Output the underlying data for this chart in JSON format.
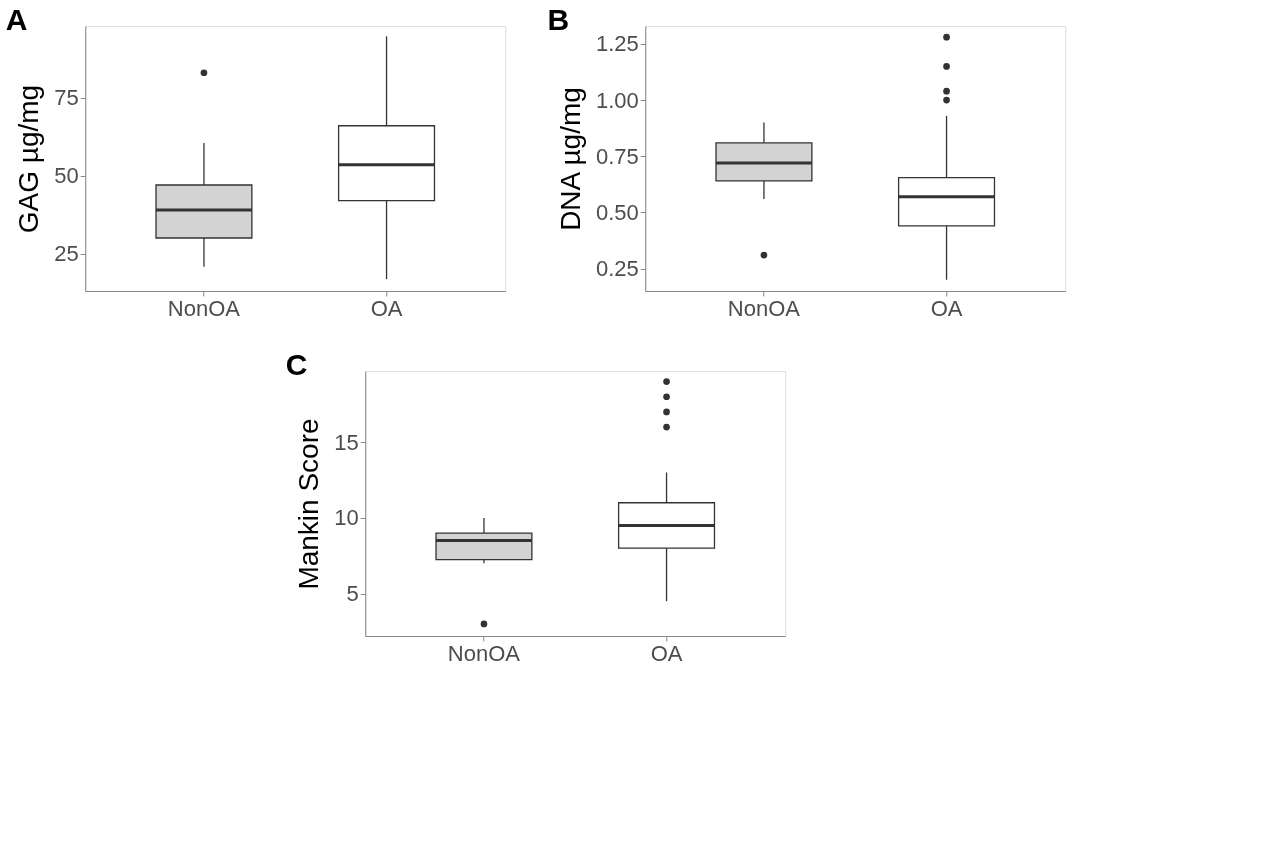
{
  "chart_data": [
    {
      "type": "box",
      "title": "A",
      "ylabel": "GAG µg/mg",
      "categories": [
        "NonOA",
        "OA"
      ],
      "colors": [
        "#d3d3d3",
        "#ffffff"
      ],
      "ylim": [
        13,
        98
      ],
      "yticks": [
        25,
        50,
        75
      ],
      "grid": false,
      "boxes": [
        {
          "low": 20.8,
          "q1": 30,
          "median": 39,
          "q3": 47,
          "high": 60.5,
          "outliers": [
            83
          ]
        },
        {
          "low": 16.8,
          "q1": 42,
          "median": 53.5,
          "q3": 66,
          "high": 94.7
        }
      ]
    },
    {
      "type": "box",
      "title": "B",
      "ylabel": "DNA µg/mg",
      "categories": [
        "NonOA",
        "OA"
      ],
      "colors": [
        "#d3d3d3",
        "#ffffff"
      ],
      "ylim": [
        0.15,
        1.33
      ],
      "yticks": [
        {
          "value": 0.25,
          "label": "0.25"
        },
        {
          "value": 0.5,
          "label": "0.50"
        },
        {
          "value": 0.75,
          "label": "0.75"
        },
        {
          "value": 1.0,
          "label": "1.00"
        },
        {
          "value": 1.25,
          "label": "1.25"
        }
      ],
      "grid": false,
      "boxes": [
        {
          "low": 0.56,
          "q1": 0.64,
          "median": 0.72,
          "q3": 0.81,
          "high": 0.9,
          "outliers": [
            0.31
          ]
        },
        {
          "low": 0.2,
          "q1": 0.44,
          "median": 0.57,
          "q3": 0.655,
          "high": 0.93,
          "outliers": [
            1.28,
            1.15,
            1.04,
            1.0
          ]
        }
      ]
    },
    {
      "type": "box",
      "title": "C",
      "ylabel": "Mankin Score",
      "categories": [
        "NonOA",
        "OA"
      ],
      "colors": [
        "#d3d3d3",
        "#ffffff"
      ],
      "ylim": [
        2.2,
        19.7
      ],
      "yticks": [
        5,
        10,
        15
      ],
      "grid": false,
      "boxes": [
        {
          "low": 7,
          "q1": 7.25,
          "median": 8.5,
          "q3": 9,
          "high": 10,
          "outliers": [
            3
          ]
        },
        {
          "low": 4.5,
          "q1": 8,
          "median": 9.5,
          "q3": 11,
          "high": 13,
          "outliers": [
            16,
            17,
            18,
            19
          ]
        }
      ]
    }
  ]
}
